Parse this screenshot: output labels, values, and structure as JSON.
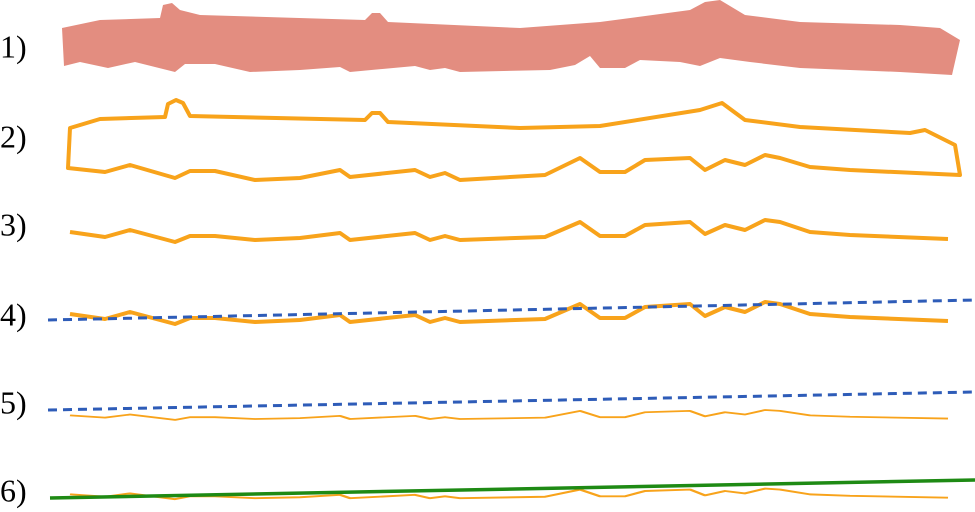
{
  "labels": [
    "1)",
    "2)",
    "3)",
    "4)",
    "5)",
    "6)"
  ]
}
